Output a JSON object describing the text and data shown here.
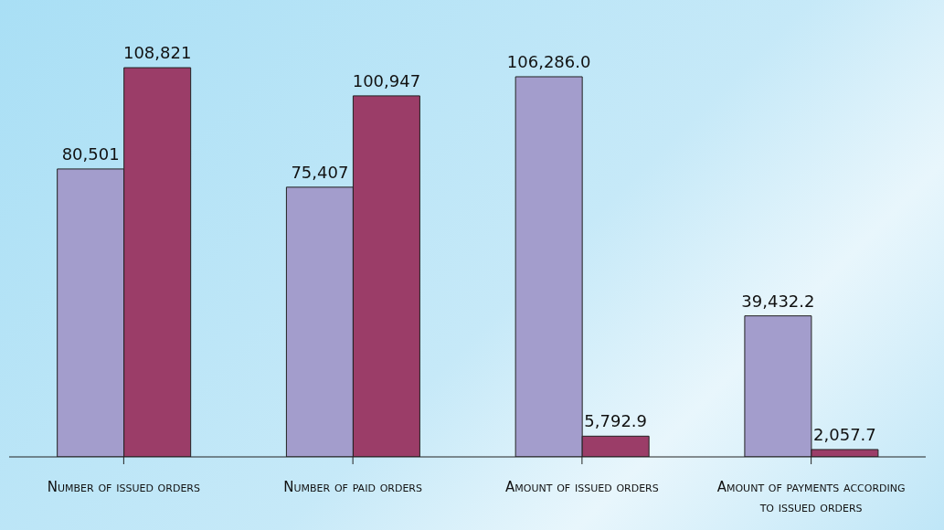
{
  "chart_data": {
    "type": "bar",
    "categories": [
      "Number of issued orders",
      "Number of paid orders",
      "Amount of issued orders",
      "Amount of payments according to issued orders"
    ],
    "series": [
      {
        "color": "#a39dcc",
        "values": [
          80501,
          75407,
          106286.0,
          39432.2
        ],
        "value_labels": [
          "80,501",
          "75,407",
          "106,286.0",
          "39,432.2"
        ]
      },
      {
        "color": "#9b3d68",
        "values": [
          108821,
          100947,
          5792.9,
          2057.7
        ],
        "value_labels": [
          "108,821",
          "100,947",
          "5,792.9",
          "2,057.7"
        ]
      }
    ],
    "legend": false,
    "grid": false,
    "tick_labels": "x"
  }
}
